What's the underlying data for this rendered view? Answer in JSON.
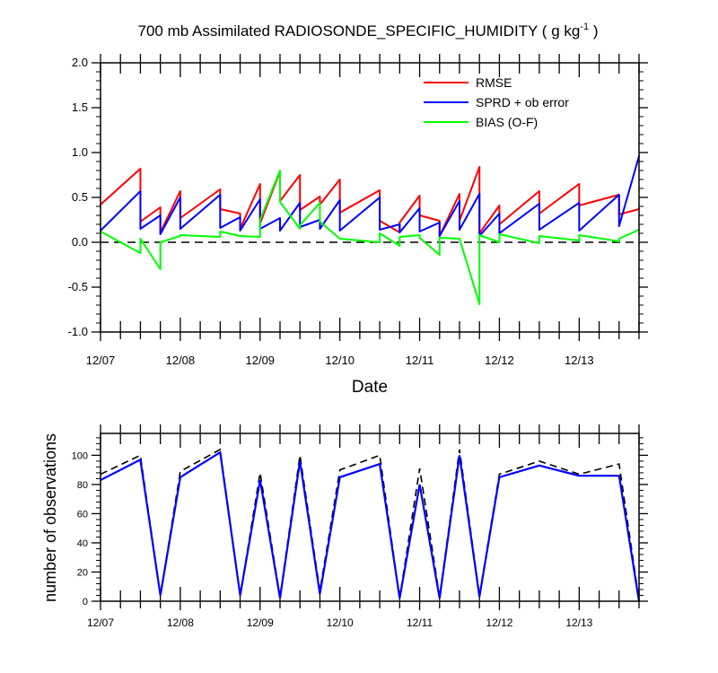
{
  "colors": {
    "rmse": "#ff0000",
    "sprd": "#0000ff",
    "bias": "#00ff00",
    "obs_used": "#0000ff",
    "obs_possible": "#000000",
    "zero_line": "#000000",
    "axes": "#000000"
  },
  "chart_data": [
    {
      "type": "line",
      "title": "700 mb Assimilated RADIOSONDE_SPECIFIC_HUMIDITY ( g kg",
      "title_sup": "-1",
      "title_end": " )",
      "xlabel": "Date",
      "ylabel": "",
      "ylim": [
        -1.0,
        2.0
      ],
      "xlim": [
        0,
        6.75
      ],
      "yticks": [
        -1.0,
        -0.5,
        0.0,
        0.5,
        1.0,
        1.5,
        2.0
      ],
      "yticklabels": [
        "-1.0",
        "-0.5",
        "0.0",
        "0.5",
        "1.0",
        "1.5",
        "2.0"
      ],
      "xticks": [
        0,
        1,
        2,
        3,
        4,
        5,
        6
      ],
      "xticklabels": [
        "12/07",
        "12/08",
        "12/09",
        "12/10",
        "12/11",
        "12/12",
        "12/13"
      ],
      "legend_position": "top-right",
      "legend": [
        "RMSE",
        "SPRD + ob error",
        "BIAS (O-F)"
      ],
      "series": [
        {
          "name": "RMSE",
          "color_key": "rmse",
          "segments": [
            {
              "x": [
                0,
                0.5
              ],
              "y": [
                0.42,
                0.82
              ]
            },
            {
              "x": [
                0.5,
                0.75
              ],
              "y": [
                0.23,
                0.39
              ]
            },
            {
              "x": [
                0.75,
                1.0
              ],
              "y": [
                0.11,
                0.57
              ]
            },
            {
              "x": [
                1.0,
                1.5
              ],
              "y": [
                0.27,
                0.59
              ]
            },
            {
              "x": [
                1.5,
                1.75
              ],
              "y": [
                0.37,
                0.32
              ]
            },
            {
              "x": [
                1.75,
                2.0
              ],
              "y": [
                0.15,
                0.65
              ]
            },
            {
              "x": [
                2.0,
                2.25
              ],
              "y": [
                0.21,
                0.79
              ]
            },
            {
              "x": [
                2.25,
                2.5
              ],
              "y": [
                0.46,
                0.75
              ]
            },
            {
              "x": [
                2.5,
                2.75
              ],
              "y": [
                0.36,
                0.51
              ]
            },
            {
              "x": [
                2.75,
                3.0
              ],
              "y": [
                0.42,
                0.7
              ]
            },
            {
              "x": [
                3.0,
                3.5
              ],
              "y": [
                0.33,
                0.58
              ]
            },
            {
              "x": [
                3.5,
                3.75
              ],
              "y": [
                0.24,
                0.11
              ]
            },
            {
              "x": [
                3.75,
                4.0
              ],
              "y": [
                0.22,
                0.52
              ]
            },
            {
              "x": [
                4.0,
                4.25
              ],
              "y": [
                0.3,
                0.24
              ]
            },
            {
              "x": [
                4.25,
                4.5
              ],
              "y": [
                0.07,
                0.54
              ]
            },
            {
              "x": [
                4.5,
                4.75
              ],
              "y": [
                0.24,
                0.84
              ]
            },
            {
              "x": [
                4.75,
                5.0
              ],
              "y": [
                0.1,
                0.41
              ]
            },
            {
              "x": [
                5.0,
                5.5
              ],
              "y": [
                0.2,
                0.57
              ]
            },
            {
              "x": [
                5.5,
                6.0
              ],
              "y": [
                0.32,
                0.65
              ]
            },
            {
              "x": [
                6.0,
                6.5
              ],
              "y": [
                0.41,
                0.53
              ]
            },
            {
              "x": [
                6.5,
                6.75
              ],
              "y": [
                0.31,
                0.37
              ]
            }
          ]
        },
        {
          "name": "SPRD + ob error",
          "color_key": "sprd",
          "segments": [
            {
              "x": [
                0,
                0.5
              ],
              "y": [
                0.13,
                0.57
              ]
            },
            {
              "x": [
                0.5,
                0.75
              ],
              "y": [
                0.15,
                0.3
              ]
            },
            {
              "x": [
                0.75,
                1.0
              ],
              "y": [
                0.09,
                0.5
              ]
            },
            {
              "x": [
                1.0,
                1.5
              ],
              "y": [
                0.15,
                0.53
              ]
            },
            {
              "x": [
                1.5,
                1.75
              ],
              "y": [
                0.16,
                0.28
              ]
            },
            {
              "x": [
                1.75,
                2.0
              ],
              "y": [
                0.13,
                0.48
              ]
            },
            {
              "x": [
                2.0,
                2.25
              ],
              "y": [
                0.15,
                0.27
              ]
            },
            {
              "x": [
                2.25,
                2.5
              ],
              "y": [
                0.13,
                0.44
              ]
            },
            {
              "x": [
                2.5,
                2.75
              ],
              "y": [
                0.17,
                0.25
              ]
            },
            {
              "x": [
                2.75,
                3.0
              ],
              "y": [
                0.15,
                0.47
              ]
            },
            {
              "x": [
                3.0,
                3.5
              ],
              "y": [
                0.13,
                0.5
              ]
            },
            {
              "x": [
                3.5,
                3.75
              ],
              "y": [
                0.14,
                0.2
              ]
            },
            {
              "x": [
                3.75,
                4.0
              ],
              "y": [
                0.11,
                0.38
              ]
            },
            {
              "x": [
                4.0,
                4.25
              ],
              "y": [
                0.12,
                0.22
              ]
            },
            {
              "x": [
                4.25,
                4.5
              ],
              "y": [
                0.07,
                0.46
              ]
            },
            {
              "x": [
                4.5,
                4.75
              ],
              "y": [
                0.14,
                0.54
              ]
            },
            {
              "x": [
                4.75,
                5.0
              ],
              "y": [
                0.07,
                0.32
              ]
            },
            {
              "x": [
                5.0,
                5.5
              ],
              "y": [
                0.1,
                0.43
              ]
            },
            {
              "x": [
                5.5,
                6.0
              ],
              "y": [
                0.14,
                0.44
              ]
            },
            {
              "x": [
                6.0,
                6.5
              ],
              "y": [
                0.13,
                0.53
              ]
            },
            {
              "x": [
                6.5,
                6.75
              ],
              "y": [
                0.18,
                0.96
              ]
            }
          ]
        },
        {
          "name": "BIAS (O-F)",
          "color_key": "bias",
          "segments": [
            {
              "x": [
                0,
                0.5
              ],
              "y": [
                0.12,
                -0.12
              ]
            },
            {
              "x": [
                0.5,
                0.75
              ],
              "y": [
                0.04,
                -0.3
              ]
            },
            {
              "x": [
                0.75,
                1.0
              ],
              "y": [
                0.0,
                0.07
              ]
            },
            {
              "x": [
                1.0,
                1.5
              ],
              "y": [
                0.08,
                0.06
              ]
            },
            {
              "x": [
                1.5,
                1.75
              ],
              "y": [
                0.12,
                0.07
              ]
            },
            {
              "x": [
                1.75,
                2.0
              ],
              "y": [
                0.07,
                0.06
              ]
            },
            {
              "x": [
                2.0,
                2.25
              ],
              "y": [
                0.25,
                0.8
              ]
            },
            {
              "x": [
                2.25,
                2.5
              ],
              "y": [
                0.45,
                0.15
              ]
            },
            {
              "x": [
                2.5,
                2.75
              ],
              "y": [
                0.19,
                0.44
              ]
            },
            {
              "x": [
                2.75,
                3.0
              ],
              "y": [
                0.23,
                0.04
              ]
            },
            {
              "x": [
                3.0,
                3.5
              ],
              "y": [
                0.04,
                0.0
              ]
            },
            {
              "x": [
                3.5,
                3.75
              ],
              "y": [
                0.1,
                -0.04
              ]
            },
            {
              "x": [
                3.75,
                4.0
              ],
              "y": [
                0.06,
                0.08
              ]
            },
            {
              "x": [
                4.0,
                4.25
              ],
              "y": [
                0.05,
                -0.14
              ]
            },
            {
              "x": [
                4.25,
                4.5
              ],
              "y": [
                0.05,
                0.04
              ]
            },
            {
              "x": [
                4.5,
                4.75
              ],
              "y": [
                0.04,
                -0.69
              ]
            },
            {
              "x": [
                4.75,
                5.0
              ],
              "y": [
                0.08,
                0.0
              ]
            },
            {
              "x": [
                5.0,
                5.5
              ],
              "y": [
                0.09,
                -0.01
              ]
            },
            {
              "x": [
                5.5,
                6.0
              ],
              "y": [
                0.07,
                0.02
              ]
            },
            {
              "x": [
                6.0,
                6.5
              ],
              "y": [
                0.08,
                0.01
              ]
            },
            {
              "x": [
                6.5,
                6.75
              ],
              "y": [
                0.04,
                0.14
              ]
            }
          ]
        }
      ]
    },
    {
      "type": "line",
      "title": "",
      "xlabel": "",
      "ylabel": "number of observations",
      "ylim": [
        0,
        115
      ],
      "xlim": [
        0,
        6.75
      ],
      "yticks": [
        0,
        20,
        40,
        60,
        80,
        100
      ],
      "yticklabels": [
        "0",
        "20",
        "40",
        "60",
        "80",
        "100"
      ],
      "xticks": [
        0,
        1,
        2,
        3,
        4,
        5,
        6
      ],
      "xticklabels": [
        "12/07",
        "12/08",
        "12/09",
        "12/10",
        "12/11",
        "12/12",
        "12/13"
      ],
      "x": [
        0,
        0.5,
        0.75,
        1.0,
        1.5,
        1.75,
        2.0,
        2.25,
        2.5,
        2.75,
        3.0,
        3.5,
        3.75,
        4.0,
        4.25,
        4.5,
        4.75,
        5.0,
        5.5,
        6.0,
        6.5,
        6.75
      ],
      "series": [
        {
          "name": "obs possible",
          "color_key": "obs_possible",
          "dashed": true,
          "values": [
            87,
            100,
            4,
            89,
            104,
            4,
            88,
            3,
            100,
            7,
            90,
            100,
            2,
            91,
            3,
            104,
            4,
            87,
            96,
            87,
            94,
            1
          ]
        },
        {
          "name": "obs used",
          "color_key": "obs_used",
          "dashed": false,
          "values": [
            83,
            97,
            4,
            85,
            102,
            4,
            83,
            2,
            96,
            5,
            85,
            94,
            2,
            80,
            2,
            100,
            3,
            85,
            93,
            86,
            86,
            0
          ]
        }
      ]
    }
  ]
}
